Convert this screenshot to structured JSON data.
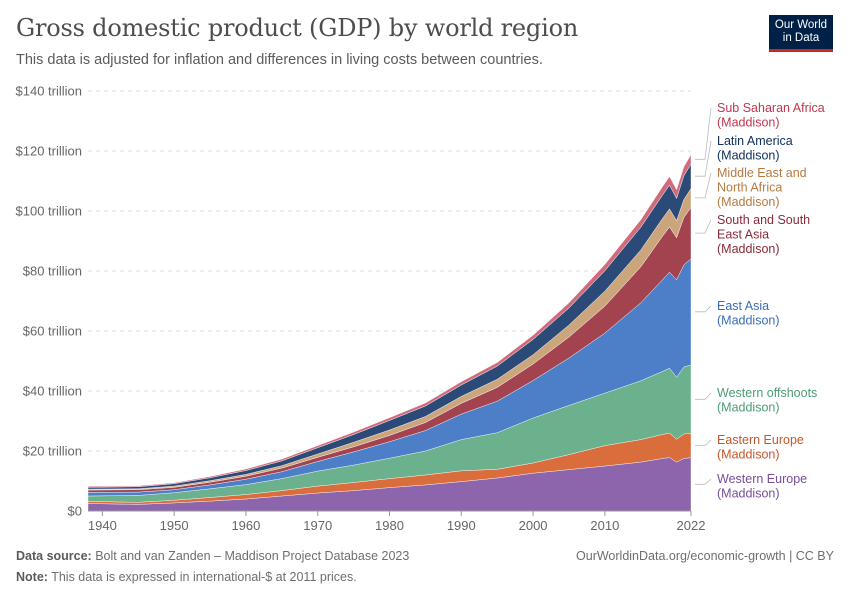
{
  "header": {
    "title": "Gross domestic product (GDP) by world region",
    "subtitle": "This data is adjusted for inflation and differences in living costs between countries."
  },
  "logo": {
    "line1": "Our World",
    "line2": "in Data"
  },
  "footer": {
    "source_label": "Data source:",
    "source_text": "Bolt and van Zanden – Maddison Project Database 2023",
    "credit": "OurWorldinData.org/economic-growth | CC BY",
    "note_label": "Note:",
    "note_text": "This data is expressed in international-$ at 2011 prices."
  },
  "chart_data": {
    "type": "area",
    "stacked": true,
    "title": "Gross domestic product (GDP) by world region",
    "ylim": [
      0,
      140
    ],
    "y_unit": "trillion",
    "y_ticks": [
      0,
      20,
      40,
      60,
      80,
      100,
      120,
      140
    ],
    "y_tick_labels": [
      "$0",
      "$20 trillion",
      "$40 trillion",
      "$60 trillion",
      "$80 trillion",
      "$100 trillion",
      "$120 trillion",
      "$140 trillion"
    ],
    "x_ticks": [
      1940,
      1950,
      1960,
      1970,
      1980,
      1990,
      2000,
      2010,
      2022
    ],
    "xlim": [
      1938,
      2022
    ],
    "grid": true,
    "legend": "right",
    "x": [
      1938,
      1945,
      1950,
      1955,
      1960,
      1965,
      1970,
      1975,
      1980,
      1985,
      1990,
      1995,
      2000,
      2005,
      2010,
      2015,
      2018,
      2019,
      2020,
      2021,
      2022
    ],
    "series": [
      {
        "name": "Western Europe (Maddison)",
        "color": "#8c65ac",
        "values": [
          2.5,
          2.2,
          2.7,
          3.3,
          4.0,
          5.0,
          6.0,
          6.8,
          7.8,
          8.7,
          9.8,
          11.0,
          12.6,
          13.8,
          15.0,
          16.3,
          17.5,
          17.8,
          16.3,
          17.5,
          17.8
        ]
      },
      {
        "name": "Eastern Europe (Maddison)",
        "color": "#d96d3b",
        "values": [
          0.7,
          0.7,
          0.9,
          1.2,
          1.5,
          1.8,
          2.3,
          2.7,
          3.0,
          3.3,
          3.6,
          2.9,
          3.4,
          5.0,
          6.8,
          7.5,
          8.0,
          8.2,
          7.6,
          8.2,
          8.0
        ]
      },
      {
        "name": "Western offshoots (Maddison)",
        "color": "#6bb18e",
        "values": [
          1.8,
          2.3,
          2.5,
          2.9,
          3.3,
          4.0,
          5.0,
          5.8,
          6.8,
          8.0,
          10.4,
          12.2,
          15.0,
          16.4,
          17.5,
          19.6,
          21.0,
          21.6,
          20.7,
          22.3,
          22.9
        ]
      },
      {
        "name": "East Asia (Maddison)",
        "color": "#4c7fc8",
        "values": [
          1.2,
          1.1,
          1.0,
          1.3,
          1.8,
          2.3,
          3.2,
          4.4,
          5.5,
          6.8,
          8.5,
          10.5,
          12.5,
          15.8,
          20.0,
          26.0,
          30.5,
          32.0,
          32.5,
          34.0,
          35.4
        ]
      },
      {
        "name": "South and South East Asia (Maddison)",
        "color": "#a2434f",
        "values": [
          0.8,
          0.8,
          0.8,
          0.9,
          1.0,
          1.2,
          1.4,
          1.7,
          2.1,
          2.7,
          3.6,
          4.6,
          5.5,
          7.0,
          9.0,
          12.0,
          14.5,
          15.1,
          14.0,
          15.8,
          17.1
        ]
      },
      {
        "name": "Middle East and North Africa (Maddison)",
        "color": "#cba67c",
        "values": [
          0.3,
          0.3,
          0.4,
          0.5,
          0.6,
          0.8,
          1.1,
          1.5,
          1.8,
          2.0,
          2.3,
          2.7,
          3.1,
          4.0,
          5.0,
          5.6,
          5.9,
          6.0,
          5.7,
          6.0,
          6.3
        ]
      },
      {
        "name": "Latin America (Maddison)",
        "color": "#2b4a78",
        "values": [
          0.6,
          0.7,
          0.8,
          1.0,
          1.3,
          1.6,
          2.1,
          2.6,
          3.2,
          3.5,
          3.8,
          4.4,
          5.1,
          5.7,
          6.8,
          7.6,
          7.8,
          7.9,
          7.4,
          7.9,
          8.2
        ]
      },
      {
        "name": "Sub Saharan Africa (Maddison)",
        "color": "#d06b7b",
        "values": [
          0.3,
          0.3,
          0.3,
          0.4,
          0.5,
          0.6,
          0.7,
          0.8,
          0.9,
          1.0,
          1.1,
          1.2,
          1.4,
          1.7,
          2.1,
          2.5,
          2.8,
          2.9,
          2.9,
          3.0,
          3.1
        ]
      }
    ],
    "legend_labels": [
      {
        "lines": [
          "Sub Saharan Africa",
          "(Maddison)"
        ],
        "color": "#c3364f",
        "series": 7
      },
      {
        "lines": [
          "Latin America",
          "(Maddison)"
        ],
        "color": "#0f2f5c",
        "series": 6
      },
      {
        "lines": [
          "Middle East and",
          "North Africa",
          "(Maddison)"
        ],
        "color": "#b77a3f",
        "series": 5
      },
      {
        "lines": [
          "South and South",
          "East Asia",
          "(Maddison)"
        ],
        "color": "#8a2a38",
        "series": 4
      },
      {
        "lines": [
          "East Asia",
          "(Maddison)"
        ],
        "color": "#3a6db8",
        "series": 3
      },
      {
        "lines": [
          "Western offshoots",
          "(Maddison)"
        ],
        "color": "#4d9c75",
        "series": 2
      },
      {
        "lines": [
          "Eastern Europe",
          "(Maddison)"
        ],
        "color": "#c7572a",
        "series": 1
      },
      {
        "lines": [
          "Western Europe",
          "(Maddison)"
        ],
        "color": "#754f9a",
        "series": 0
      }
    ]
  }
}
